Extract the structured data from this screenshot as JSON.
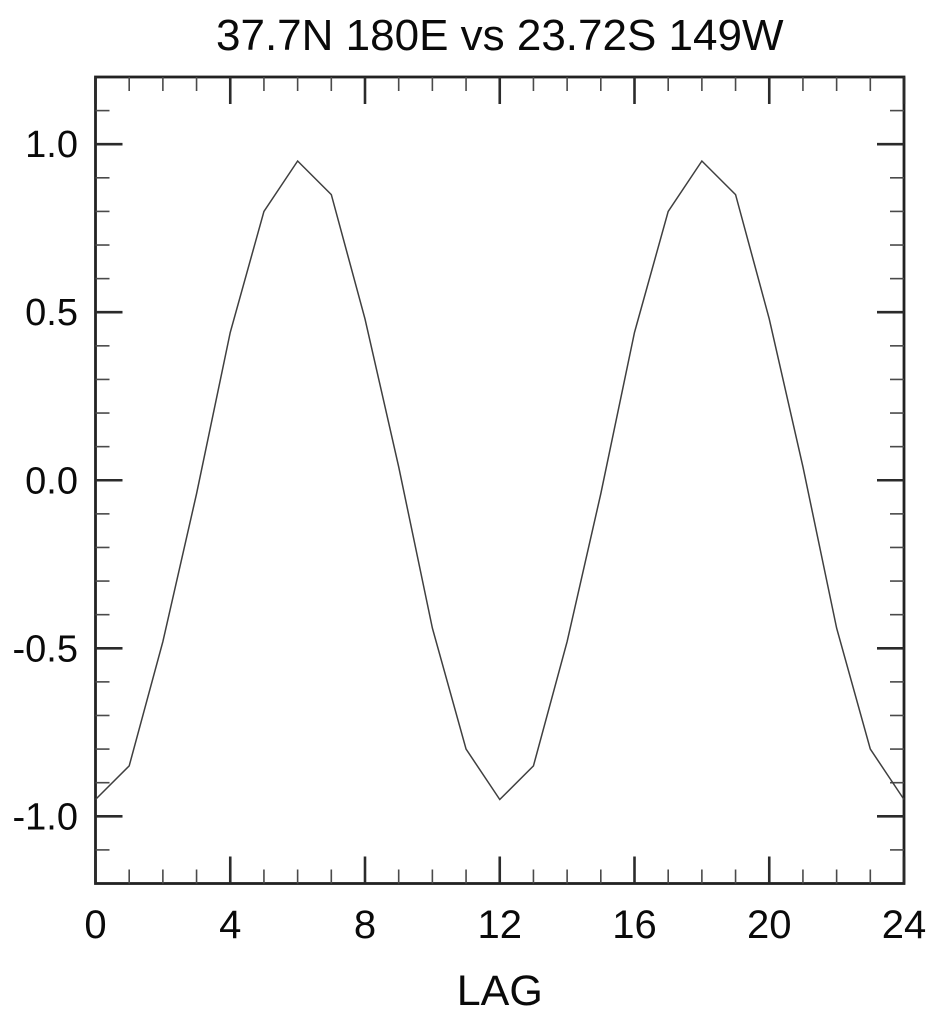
{
  "page": {
    "background": "#ffffff"
  },
  "chart_data": {
    "type": "line",
    "title": "37.7N 180E vs 23.72S 149W",
    "xlabel": "LAG",
    "ylabel": "",
    "x": [
      0,
      1,
      2,
      3,
      4,
      5,
      6,
      7,
      8,
      9,
      10,
      11,
      12,
      13,
      14,
      15,
      16,
      17,
      18,
      19,
      20,
      21,
      22,
      23,
      24
    ],
    "values": [
      -0.95,
      -0.85,
      -0.48,
      -0.04,
      0.44,
      0.8,
      0.95,
      0.85,
      0.48,
      0.04,
      -0.44,
      -0.8,
      -0.95,
      -0.85,
      -0.48,
      -0.04,
      0.44,
      0.8,
      0.95,
      0.85,
      0.48,
      0.04,
      -0.44,
      -0.8,
      -0.95
    ],
    "xlim": [
      0,
      24
    ],
    "ylim": [
      -1.2,
      1.2
    ],
    "x_major_ticks": [
      0,
      4,
      8,
      12,
      16,
      20,
      24
    ],
    "x_tick_labels": [
      "0",
      "4",
      "8",
      "12",
      "16",
      "20",
      "24"
    ],
    "x_minor_step": 1,
    "y_major_ticks": [
      -1.0,
      -0.5,
      0.0,
      0.5,
      1.0
    ],
    "y_tick_labels": [
      "-1.0",
      "-0.5",
      "0.0",
      "0.5",
      "1.0"
    ],
    "y_minor_step": 0.1,
    "grid": false,
    "legend": null,
    "line_color": "#3f3f3f",
    "frame_color": "#222222",
    "text_color": "#0a0a0a",
    "background": "#ffffff"
  }
}
